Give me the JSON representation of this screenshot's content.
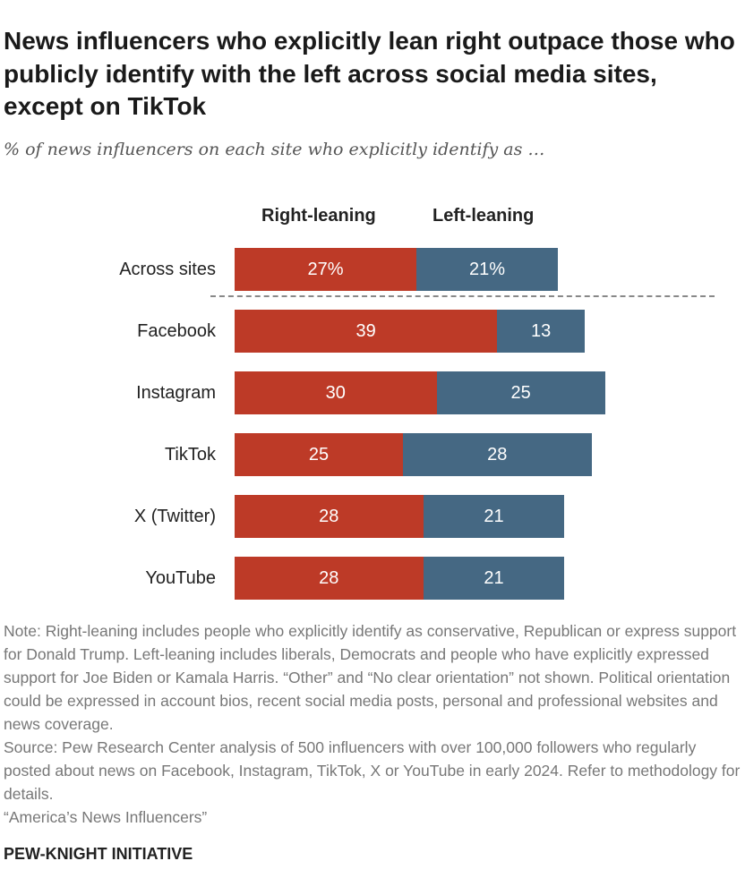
{
  "title": "News influencers who explicitly lean right outpace those who publicly identify with the left across social media sites, except on TikTok",
  "subtitle": "% of news influencers on each site who explicitly identify as …",
  "chart_data": {
    "type": "bar",
    "stacked": true,
    "orientation": "horizontal",
    "categories": [
      "Across sites",
      "Facebook",
      "Instagram",
      "TikTok",
      "X (Twitter)",
      "YouTube"
    ],
    "series": [
      {
        "name": "Right-leaning",
        "values": [
          27,
          39,
          30,
          25,
          28,
          28
        ],
        "labels": [
          "27%",
          "39",
          "30",
          "25",
          "28",
          "28"
        ],
        "color": "#bd3a27"
      },
      {
        "name": "Left-leaning",
        "values": [
          21,
          13,
          25,
          28,
          21,
          21
        ],
        "labels": [
          "21%",
          "13",
          "25",
          "28",
          "21",
          "21"
        ],
        "color": "#456883"
      }
    ],
    "xlim": [
      0,
      70
    ],
    "legend": "top"
  },
  "notes": {
    "note": "Note: Right-leaning includes people who explicitly identify as conservative, Republican or express support for Donald Trump. Left-leaning includes liberals, Democrats and people who have explicitly expressed support for Joe Biden or Kamala Harris. “Other” and “No clear orientation” not shown. Political orientation could be expressed in account bios, recent social media posts, personal and professional websites and news coverage.",
    "source": "Source: Pew Research Center analysis of 500 influencers with over 100,000 followers who regularly posted about news on Facebook, Instagram, TikTok, X or YouTube in early 2024. Refer to methodology for details.",
    "report": "“America’s News Influencers”"
  },
  "footer": "PEW-KNIGHT INITIATIVE"
}
